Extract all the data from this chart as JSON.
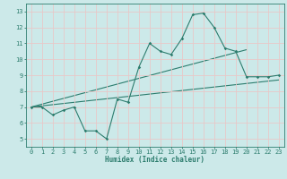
{
  "xlabel": "Humidex (Indice chaleur)",
  "bg_color": "#cce9e9",
  "grid_color": "#e8c8c8",
  "line_color": "#2d7d6e",
  "xlim": [
    -0.5,
    23.5
  ],
  "ylim": [
    4.5,
    13.5
  ],
  "xticks": [
    0,
    1,
    2,
    3,
    4,
    5,
    6,
    7,
    8,
    9,
    10,
    11,
    12,
    13,
    14,
    15,
    16,
    17,
    18,
    19,
    20,
    21,
    22,
    23
  ],
  "yticks": [
    5,
    6,
    7,
    8,
    9,
    10,
    11,
    12,
    13
  ],
  "main_line_x": [
    0,
    1,
    2,
    3,
    4,
    5,
    6,
    7,
    8,
    9,
    10,
    11,
    12,
    13,
    14,
    15,
    16,
    17,
    18,
    19,
    20,
    21,
    22,
    23
  ],
  "main_line_y": [
    7.0,
    7.0,
    6.5,
    6.8,
    7.0,
    5.5,
    5.5,
    5.0,
    7.5,
    7.3,
    9.5,
    11.0,
    10.5,
    10.3,
    11.3,
    12.8,
    12.9,
    12.0,
    10.7,
    10.5,
    8.9,
    8.9,
    8.9,
    9.0
  ],
  "line2_x": [
    0,
    23
  ],
  "line2_y": [
    7.0,
    8.7
  ],
  "line3_x": [
    0,
    20
  ],
  "line3_y": [
    7.0,
    10.6
  ],
  "xlabel_fontsize": 5.5,
  "tick_fontsize": 5.0,
  "marker_size": 1.8,
  "line_width": 0.8
}
